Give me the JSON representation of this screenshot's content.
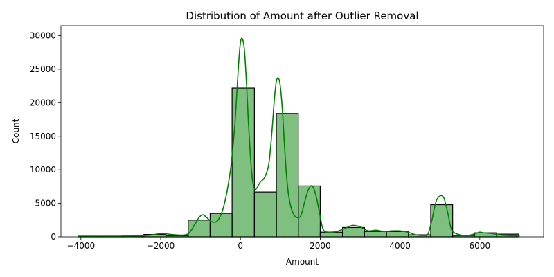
{
  "chart_data": {
    "type": "bar",
    "title": "Distribution of Amount after Outlier Removal",
    "xlabel": "Amount",
    "ylabel": "Count",
    "xlim": [
      -4500,
      7600
    ],
    "ylim": [
      0,
      31500
    ],
    "x_ticks": [
      -4000,
      -2000,
      0,
      2000,
      4000,
      6000
    ],
    "y_ticks": [
      0,
      5000,
      10000,
      15000,
      20000,
      25000,
      30000
    ],
    "grid": false,
    "legend": "none",
    "bar_color": "#008000",
    "bar_edge_color": "#000000",
    "kde_color": "#008000",
    "bins": [
      {
        "x0": -4070,
        "x1": -3520,
        "count": 60
      },
      {
        "x0": -3520,
        "x1": -2970,
        "count": 40
      },
      {
        "x0": -2970,
        "x1": -2420,
        "count": 120
      },
      {
        "x0": -2420,
        "x1": -1870,
        "count": 350
      },
      {
        "x0": -1870,
        "x1": -1310,
        "count": 180
      },
      {
        "x0": -1310,
        "x1": -760,
        "count": 2500
      },
      {
        "x0": -760,
        "x1": -210,
        "count": 3500
      },
      {
        "x0": -210,
        "x1": 350,
        "count": 22200
      },
      {
        "x0": 350,
        "x1": 900,
        "count": 6700
      },
      {
        "x0": 900,
        "x1": 1450,
        "count": 18400
      },
      {
        "x0": 1450,
        "x1": 2000,
        "count": 7600
      },
      {
        "x0": 2000,
        "x1": 2560,
        "count": 700
      },
      {
        "x0": 2560,
        "x1": 3110,
        "count": 1400
      },
      {
        "x0": 3110,
        "x1": 3660,
        "count": 800
      },
      {
        "x0": 3660,
        "x1": 4210,
        "count": 800
      },
      {
        "x0": 4210,
        "x1": 4770,
        "count": 300
      },
      {
        "x0": 4770,
        "x1": 5320,
        "count": 4800
      },
      {
        "x0": 5320,
        "x1": 5870,
        "count": 200
      },
      {
        "x0": 5870,
        "x1": 6420,
        "count": 600
      },
      {
        "x0": 6420,
        "x1": 6980,
        "count": 400
      }
    ],
    "kde": {
      "x": [
        -4070,
        -3500,
        -3000,
        -2500,
        -2200,
        -2000,
        -1800,
        -1500,
        -1300,
        -1150,
        -1050,
        -950,
        -850,
        -700,
        -550,
        -400,
        -250,
        -150,
        -100,
        -50,
        0,
        50,
        100,
        150,
        200,
        250,
        300,
        350,
        400,
        450,
        500,
        600,
        700,
        750,
        800,
        850,
        900,
        950,
        1000,
        1050,
        1100,
        1150,
        1200,
        1250,
        1300,
        1350,
        1400,
        1450,
        1500,
        1550,
        1600,
        1700,
        1800,
        1900,
        2000,
        2050,
        2100,
        2200,
        2400,
        2600,
        2800,
        3000,
        3200,
        3400,
        3600,
        3800,
        4000,
        4200,
        4400,
        4600,
        4700,
        4800,
        4900,
        5000,
        5100,
        5200,
        5300,
        5500,
        5700,
        5900,
        6000,
        6100,
        6300,
        6500,
        6700,
        7000
      ],
      "y": [
        100,
        100,
        100,
        150,
        300,
        500,
        400,
        250,
        500,
        1800,
        2800,
        3300,
        2900,
        2200,
        2600,
        5000,
        10000,
        16000,
        20500,
        25500,
        29000,
        29500,
        27800,
        23000,
        17000,
        12000,
        8500,
        7200,
        7200,
        7700,
        8200,
        8800,
        10500,
        13000,
        16500,
        20500,
        23200,
        23700,
        22400,
        19000,
        14000,
        9500,
        6500,
        4800,
        3800,
        3200,
        2900,
        2900,
        3000,
        3800,
        5000,
        7000,
        7600,
        6000,
        3000,
        1500,
        900,
        700,
        800,
        1200,
        1700,
        1500,
        900,
        1000,
        800,
        900,
        900,
        700,
        300,
        200,
        400,
        2500,
        5200,
        6100,
        5800,
        3500,
        1000,
        300,
        200,
        500,
        700,
        600,
        500,
        300,
        200,
        150
      ]
    }
  }
}
